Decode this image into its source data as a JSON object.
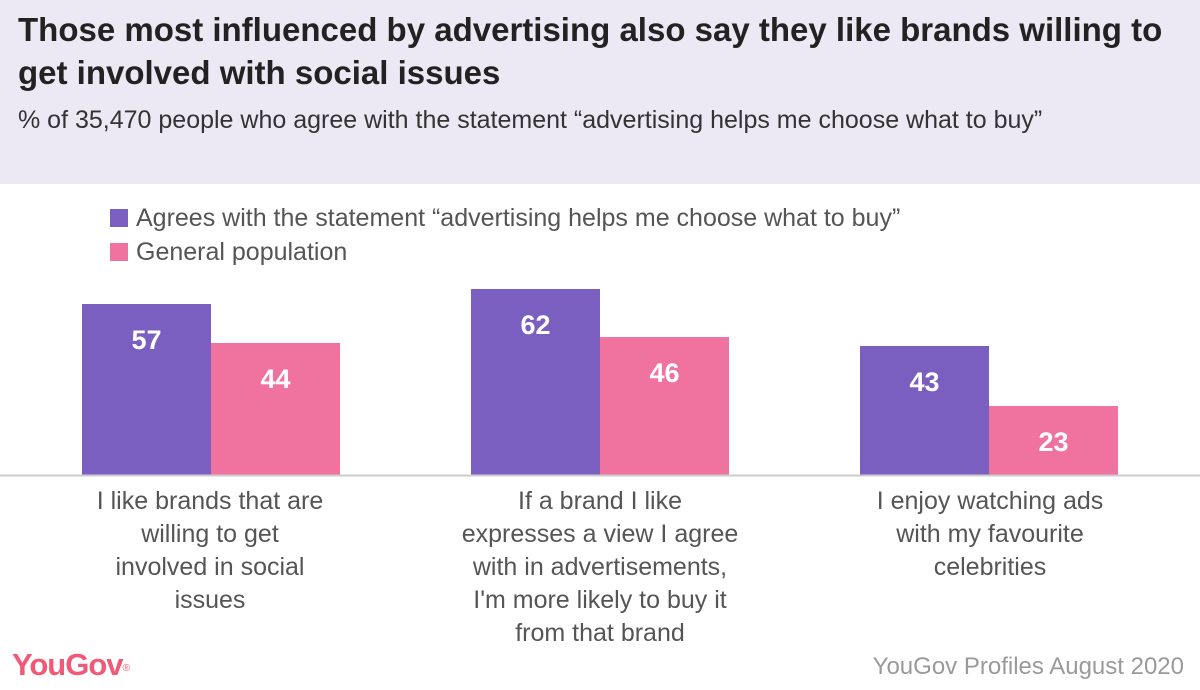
{
  "header": {
    "title": "Those most influenced by advertising also say they like brands willing to get involved with social issues",
    "subtitle": "% of 35,470 people who agree with the statement “advertising helps me choose what to buy”"
  },
  "colors": {
    "header_bg": "#ece8f4",
    "series_agree": "#7b5fc0",
    "series_general": "#f0739f",
    "baseline": "#cccccc",
    "logo": "#f05a77"
  },
  "chart_data": {
    "type": "bar",
    "categories": [
      "I like brands that are willing to get involved in social issues",
      "If a brand I like expresses a view I agree with in advertisements, I'm more likely to buy it from that brand",
      "I enjoy watching ads with my favourite celebrities"
    ],
    "series": [
      {
        "name": "Agrees with the statement “advertising helps me choose what to buy”",
        "values": [
          57,
          62,
          43
        ]
      },
      {
        "name": "General population",
        "values": [
          44,
          46,
          23
        ]
      }
    ],
    "ylim": [
      0,
      100
    ],
    "grid": false,
    "legend": "top-left",
    "data_labels": true
  },
  "footer": {
    "logo": "YouGov",
    "source": "YouGov Profiles August 2020"
  }
}
